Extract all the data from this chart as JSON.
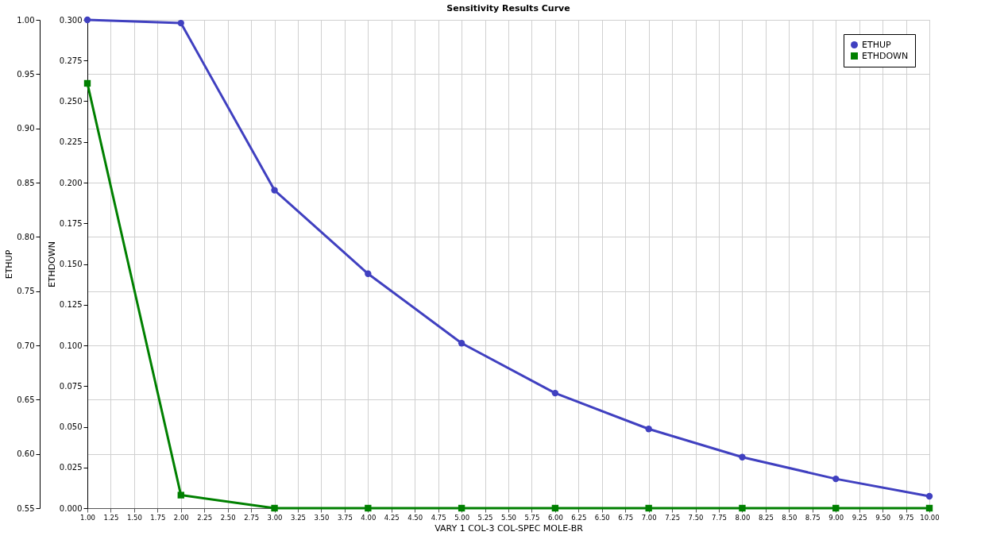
{
  "chart_data": {
    "type": "line",
    "title": "Sensitivity Results Curve",
    "xlabel": "VARY  1 COL-3 COL-SPEC MOLE-BR",
    "ylabel": "ETHUP",
    "y2label": "ETHDOWN",
    "x": [
      1,
      2,
      3,
      4,
      5,
      6,
      7,
      8,
      9,
      10
    ],
    "series": [
      {
        "name": "ETHUP",
        "color": "#4040c0",
        "marker": "circle",
        "values": [
          1.0,
          0.997,
          0.843,
          0.766,
          0.702,
          0.656,
          0.623,
          0.597,
          0.577,
          0.561
        ]
      },
      {
        "name": "ETHDOWN",
        "color": "#008000",
        "marker": "square",
        "axis": "y2",
        "values": [
          0.261,
          0.008,
          0,
          0,
          0,
          0,
          0,
          0,
          0,
          0
        ]
      }
    ],
    "xlim": [
      1,
      10
    ],
    "xticks": [
      {
        "value": 1,
        "label": "1.00"
      },
      {
        "value": 1.25,
        "label": "1.25"
      },
      {
        "value": 1.5,
        "label": "1.50"
      },
      {
        "value": 1.75,
        "label": "1.75"
      },
      {
        "value": 2,
        "label": "2.00"
      },
      {
        "value": 2.25,
        "label": "2.25"
      },
      {
        "value": 2.5,
        "label": "2.50"
      },
      {
        "value": 2.75,
        "label": "2.75"
      },
      {
        "value": 3,
        "label": "3.00"
      },
      {
        "value": 3.25,
        "label": "3.25"
      },
      {
        "value": 3.5,
        "label": "3.50"
      },
      {
        "value": 3.75,
        "label": "3.75"
      },
      {
        "value": 4,
        "label": "4.00"
      },
      {
        "value": 4.25,
        "label": "4.25"
      },
      {
        "value": 4.5,
        "label": "4.50"
      },
      {
        "value": 4.75,
        "label": "4.75"
      },
      {
        "value": 5,
        "label": "5.00"
      },
      {
        "value": 5.25,
        "label": "5.25"
      },
      {
        "value": 5.5,
        "label": "5.50"
      },
      {
        "value": 5.75,
        "label": "5.75"
      },
      {
        "value": 6,
        "label": "6.00"
      },
      {
        "value": 6.25,
        "label": "6.25"
      },
      {
        "value": 6.5,
        "label": "6.50"
      },
      {
        "value": 6.75,
        "label": "6.75"
      },
      {
        "value": 7,
        "label": "7.00"
      },
      {
        "value": 7.25,
        "label": "7.25"
      },
      {
        "value": 7.5,
        "label": "7.50"
      },
      {
        "value": 7.75,
        "label": "7.75"
      },
      {
        "value": 8,
        "label": "8.00"
      },
      {
        "value": 8.25,
        "label": "8.25"
      },
      {
        "value": 8.5,
        "label": "8.50"
      },
      {
        "value": 8.75,
        "label": "8.75"
      },
      {
        "value": 9,
        "label": "9.00"
      },
      {
        "value": 9.25,
        "label": "9.25"
      },
      {
        "value": 9.5,
        "label": "9.50"
      },
      {
        "value": 9.75,
        "label": "9.75"
      },
      {
        "value": 10,
        "label": "10.00"
      }
    ],
    "ylim": [
      0.55,
      1.0
    ],
    "yticks": [
      0.55,
      {
        "value": 0.6,
        "label": "0.60"
      },
      0.65,
      {
        "value": 0.7,
        "label": "0.70"
      },
      0.75,
      {
        "value": 0.8,
        "label": "0.80"
      },
      0.85,
      {
        "value": 0.9,
        "label": "0.90"
      },
      0.95,
      {
        "value": 1.0,
        "label": "1.00"
      }
    ],
    "y2lim": [
      0,
      0.3
    ],
    "y2ticks": [
      {
        "value": 0,
        "label": "0.000"
      },
      0.025,
      {
        "value": 0.05,
        "label": "0.050"
      },
      0.075,
      {
        "value": 0.1,
        "label": "0.100"
      },
      0.125,
      {
        "value": 0.15,
        "label": "0.150"
      },
      0.175,
      {
        "value": 0.2,
        "label": "0.200"
      },
      0.225,
      {
        "value": 0.25,
        "label": "0.250"
      },
      0.275,
      {
        "value": 0.3,
        "label": "0.300"
      }
    ],
    "grid": true,
    "legend": "top right",
    "line_style": "solid"
  }
}
